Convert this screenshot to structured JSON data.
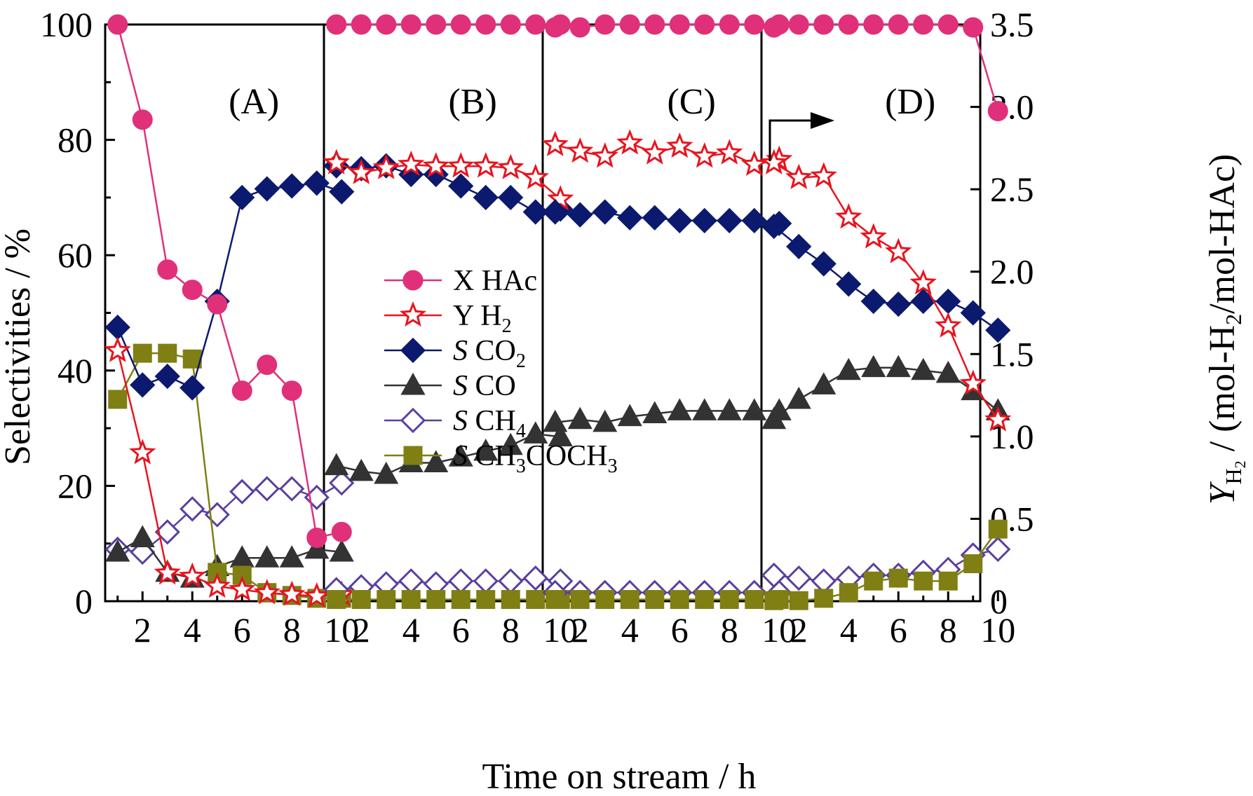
{
  "chart_data": {
    "type": "line",
    "xlabel": "Time on stream / h",
    "ylabel_left": "Selectivities / %",
    "ylabel_right": {
      "main": "Y",
      "sub": "H",
      "subsub": "2",
      "rest": " / (mol-H",
      "rest_sub": "2",
      "rest_end": "/mol-HAc)"
    },
    "ylim_left": [
      0,
      100
    ],
    "ylim_right": [
      0,
      3.5
    ],
    "left_ticks": [
      "0",
      "20",
      "40",
      "60",
      "80",
      "100"
    ],
    "right_ticks": [
      "0",
      "0.5",
      "1.0",
      "1.5",
      "2.0",
      "2.5",
      "3.0",
      "3.5"
    ],
    "x_tick_labels": [
      "2",
      "4",
      "6",
      "8",
      "10"
    ],
    "arrow_direction": "right",
    "panels": [
      {
        "label": "(A)",
        "x": [
          1,
          2,
          3,
          4,
          5,
          6,
          7,
          8,
          9,
          10
        ],
        "series": {
          "X_HAc": [
            100,
            83.5,
            57.5,
            54,
            51.5,
            36.5,
            41,
            36.5,
            11,
            12
          ],
          "Y_H2": [
            1.52,
            0.9,
            0.17,
            0.15,
            0.09,
            0.07,
            0.05,
            0.04,
            0.03,
            0.04
          ],
          "S_CO2": [
            47.5,
            37.5,
            39,
            37,
            52,
            70,
            71.5,
            72,
            72.5,
            71
          ],
          "S_CO": [
            8.5,
            11,
            5,
            4,
            6,
            7.5,
            7.5,
            7.5,
            9,
            8.5
          ],
          "S_CH4": [
            9,
            8.5,
            12,
            16,
            15,
            19,
            19.5,
            19.5,
            18,
            20.5
          ],
          "S_CH3COCH3": [
            35,
            43,
            43,
            42,
            5,
            4.5,
            1.5,
            1,
            0.5,
            0.5
          ]
        }
      },
      {
        "label": "(B)",
        "x": [
          1,
          2,
          3,
          4,
          5,
          6,
          7,
          8,
          9,
          10
        ],
        "series": {
          "X_HAc": [
            100,
            100,
            100,
            100,
            100,
            100,
            100,
            100,
            100,
            100
          ],
          "Y_H2": [
            2.66,
            2.6,
            2.63,
            2.65,
            2.64,
            2.64,
            2.64,
            2.63,
            2.57,
            2.44
          ],
          "S_CO2": [
            75.5,
            75,
            75.5,
            74,
            74,
            72,
            70,
            70,
            67.5,
            68
          ],
          "S_CO": [
            23.5,
            22.5,
            22,
            24,
            24,
            25,
            26,
            27,
            29,
            28.5
          ],
          "S_CH4": [
            2,
            2.5,
            3,
            3.5,
            3,
            3.5,
            3.5,
            3.5,
            4,
            3.5
          ],
          "S_CH3COCH3": [
            0.3,
            0.3,
            0.3,
            0.3,
            0.3,
            0.3,
            0.3,
            0.3,
            0.3,
            0.3
          ]
        }
      },
      {
        "label": "(C)",
        "x": [
          1,
          2,
          3,
          4,
          5,
          6,
          7,
          8,
          9,
          10
        ],
        "series": {
          "X_HAc": [
            99.5,
            99.5,
            100,
            100,
            100,
            100,
            100,
            100,
            100,
            100
          ],
          "Y_H2": [
            2.77,
            2.73,
            2.7,
            2.78,
            2.72,
            2.76,
            2.7,
            2.72,
            2.65,
            2.68
          ],
          "S_CO2": [
            67.5,
            67,
            67.5,
            66.5,
            66.5,
            66,
            66,
            66,
            66,
            65.5
          ],
          "S_CO": [
            31,
            31.5,
            31,
            32,
            32.5,
            33,
            33,
            33,
            33,
            33
          ],
          "S_CH4": [
            1.5,
            1.5,
            1.5,
            1.5,
            1.5,
            1.5,
            1.5,
            1.5,
            1.5,
            1.5
          ],
          "S_CH3COCH3": [
            0.3,
            0.3,
            0.3,
            0.3,
            0.3,
            0.3,
            0.3,
            0.3,
            0.3,
            0.3
          ]
        }
      },
      {
        "label": "(D)",
        "x": [
          1,
          2,
          3,
          4,
          5,
          6,
          7,
          8,
          9,
          10
        ],
        "series": {
          "X_HAc": [
            99.5,
            100,
            100,
            100,
            100,
            100,
            100,
            100,
            99.5,
            85
          ],
          "Y_H2": [
            2.66,
            2.57,
            2.58,
            2.33,
            2.21,
            2.12,
            1.93,
            1.67,
            1.32,
            1.1
          ],
          "S_CO2": [
            65,
            61.5,
            58.5,
            55,
            52,
            51.5,
            52,
            52,
            50,
            47
          ],
          "S_CO": [
            31.5,
            35,
            37.5,
            40,
            40.5,
            40.5,
            40,
            39.5,
            36.5,
            33
          ],
          "S_CH4": [
            4.5,
            4,
            3.5,
            4,
            4.5,
            4.5,
            5,
            5.5,
            8,
            9
          ],
          "S_CH3COCH3": [
            0.1,
            0.1,
            0.5,
            1.5,
            3.5,
            4,
            3.5,
            3.5,
            6.5,
            12.5
          ]
        }
      }
    ],
    "legend": [
      {
        "key": "X_HAc",
        "italic": "",
        "label": "X HAc",
        "sub": "",
        "rest": ""
      },
      {
        "key": "Y_H2",
        "italic": "",
        "label": "Y H",
        "sub": "2",
        "rest": ""
      },
      {
        "key": "S_CO2",
        "italic": "S",
        "label": " CO",
        "sub": "2",
        "rest": ""
      },
      {
        "key": "S_CO",
        "italic": "S",
        "label": " CO",
        "sub": "",
        "rest": ""
      },
      {
        "key": "S_CH4",
        "italic": "S",
        "label": " CH",
        "sub": "4",
        "rest": ""
      },
      {
        "key": "S_CH3COCH3",
        "italic": "S",
        "label": " CH",
        "sub": "3",
        "rest": "COCH",
        "sub2": "3"
      }
    ],
    "styles": {
      "X_HAc": {
        "color": "#e0307a",
        "marker": "circle",
        "fill": "filled",
        "axis": "left"
      },
      "Y_H2": {
        "color": "#e8141e",
        "marker": "star",
        "fill": "open",
        "axis": "right"
      },
      "S_CO2": {
        "color": "#0b1a6e",
        "marker": "diamond",
        "fill": "filled",
        "axis": "left"
      },
      "S_CO": {
        "color": "#333333",
        "marker": "triangle",
        "fill": "filled",
        "axis": "left"
      },
      "S_CH4": {
        "color": "#5a3fa0",
        "marker": "diamond",
        "fill": "open",
        "axis": "left"
      },
      "S_CH3COCH3": {
        "color": "#7f7f14",
        "marker": "square",
        "fill": "filled",
        "axis": "left"
      }
    }
  }
}
